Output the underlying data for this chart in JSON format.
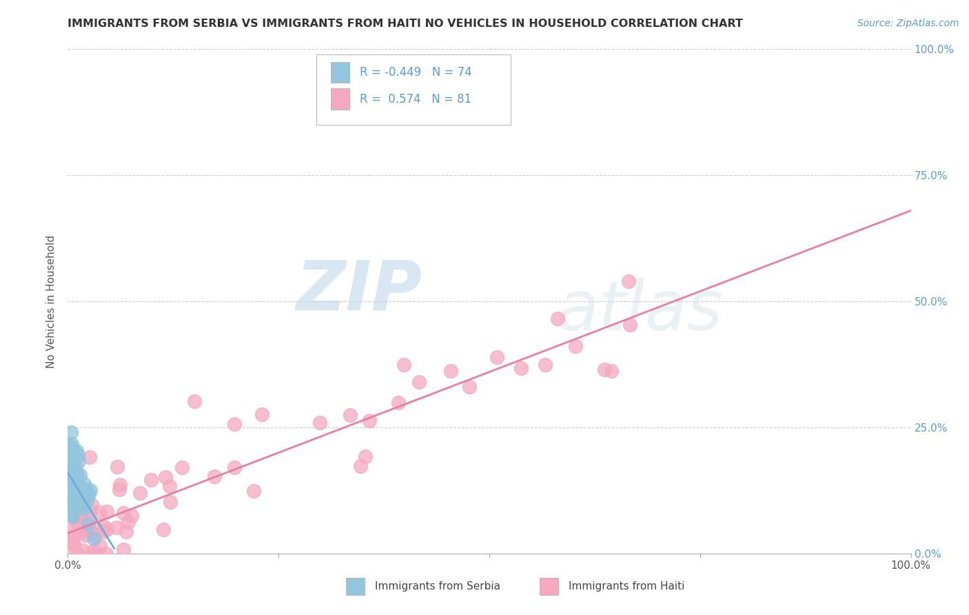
{
  "title": "IMMIGRANTS FROM SERBIA VS IMMIGRANTS FROM HAITI NO VEHICLES IN HOUSEHOLD CORRELATION CHART",
  "source_text": "Source: ZipAtlas.com",
  "ylabel": "No Vehicles in Household",
  "legend_label1": "Immigrants from Serbia",
  "legend_label2": "Immigrants from Haiti",
  "R1": -0.449,
  "N1": 74,
  "R2": 0.574,
  "N2": 81,
  "color_serbia": "#92c5de",
  "color_haiti": "#f4a9c0",
  "color_serbia_line": "#6baed6",
  "color_haiti_line": "#e87fa0",
  "xmin": 0.0,
  "xmax": 1.0,
  "ymin": 0.0,
  "ymax": 1.0,
  "x_tick_positions": [
    0.0,
    0.25,
    0.5,
    0.75,
    1.0
  ],
  "x_tick_labels_ends": [
    "0.0%",
    "100.0%"
  ],
  "y_tick_labels": [
    "0.0%",
    "25.0%",
    "50.0%",
    "75.0%",
    "100.0%"
  ],
  "y_tick_positions": [
    0.0,
    0.25,
    0.5,
    0.75,
    1.0
  ],
  "watermark_zip": "ZIP",
  "watermark_atlas": "atlas",
  "grid_color": "#cccccc",
  "background_color": "#ffffff",
  "title_color": "#333333",
  "source_color": "#5b9bd5",
  "right_tick_color": "#5b9bd5",
  "serbia_line_x0": 0.0,
  "serbia_line_x1": 0.055,
  "serbia_line_y0": 0.16,
  "serbia_line_y1": 0.01,
  "haiti_line_x0": 0.0,
  "haiti_line_x1": 1.0,
  "haiti_line_y0": 0.04,
  "haiti_line_y1": 0.68
}
